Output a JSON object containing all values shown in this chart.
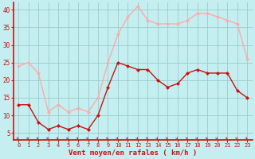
{
  "hours": [
    0,
    1,
    2,
    3,
    4,
    5,
    6,
    7,
    8,
    9,
    10,
    11,
    12,
    13,
    14,
    15,
    16,
    17,
    18,
    19,
    20,
    21,
    22,
    23
  ],
  "wind_avg": [
    13,
    13,
    8,
    6,
    7,
    6,
    7,
    6,
    10,
    18,
    25,
    24,
    23,
    23,
    20,
    18,
    19,
    22,
    23,
    22,
    22,
    22,
    17,
    15
  ],
  "wind_gust": [
    24,
    25,
    22,
    11,
    13,
    11,
    12,
    11,
    15,
    25,
    33,
    38,
    41,
    37,
    36,
    36,
    36,
    37,
    39,
    39,
    38,
    37,
    36,
    26
  ],
  "avg_color": "#cc1111",
  "gust_color": "#ffaaaa",
  "background_color": "#c4eef0",
  "grid_color": "#99cccc",
  "xlabel": "Vent moyen/en rafales ( km/h )",
  "xlim_min": -0.5,
  "xlim_max": 23.5,
  "ylim_min": 3,
  "ylim_max": 42,
  "yticks": [
    5,
    10,
    15,
    20,
    25,
    30,
    35,
    40
  ],
  "xticks": [
    0,
    1,
    2,
    3,
    4,
    5,
    6,
    7,
    8,
    9,
    10,
    11,
    12,
    13,
    14,
    15,
    16,
    17,
    18,
    19,
    20,
    21,
    22,
    23
  ],
  "axis_color": "#cc1111",
  "tick_color": "#cc1111",
  "label_color": "#cc1111",
  "marker_style": "D",
  "marker_size": 2.0,
  "line_width": 1.0,
  "arrow_angles": [
    225,
    225,
    225,
    225,
    225,
    225,
    225,
    225,
    225,
    225,
    225,
    225,
    225,
    225,
    225,
    225,
    225,
    225,
    225,
    225,
    225,
    225,
    270,
    225
  ]
}
